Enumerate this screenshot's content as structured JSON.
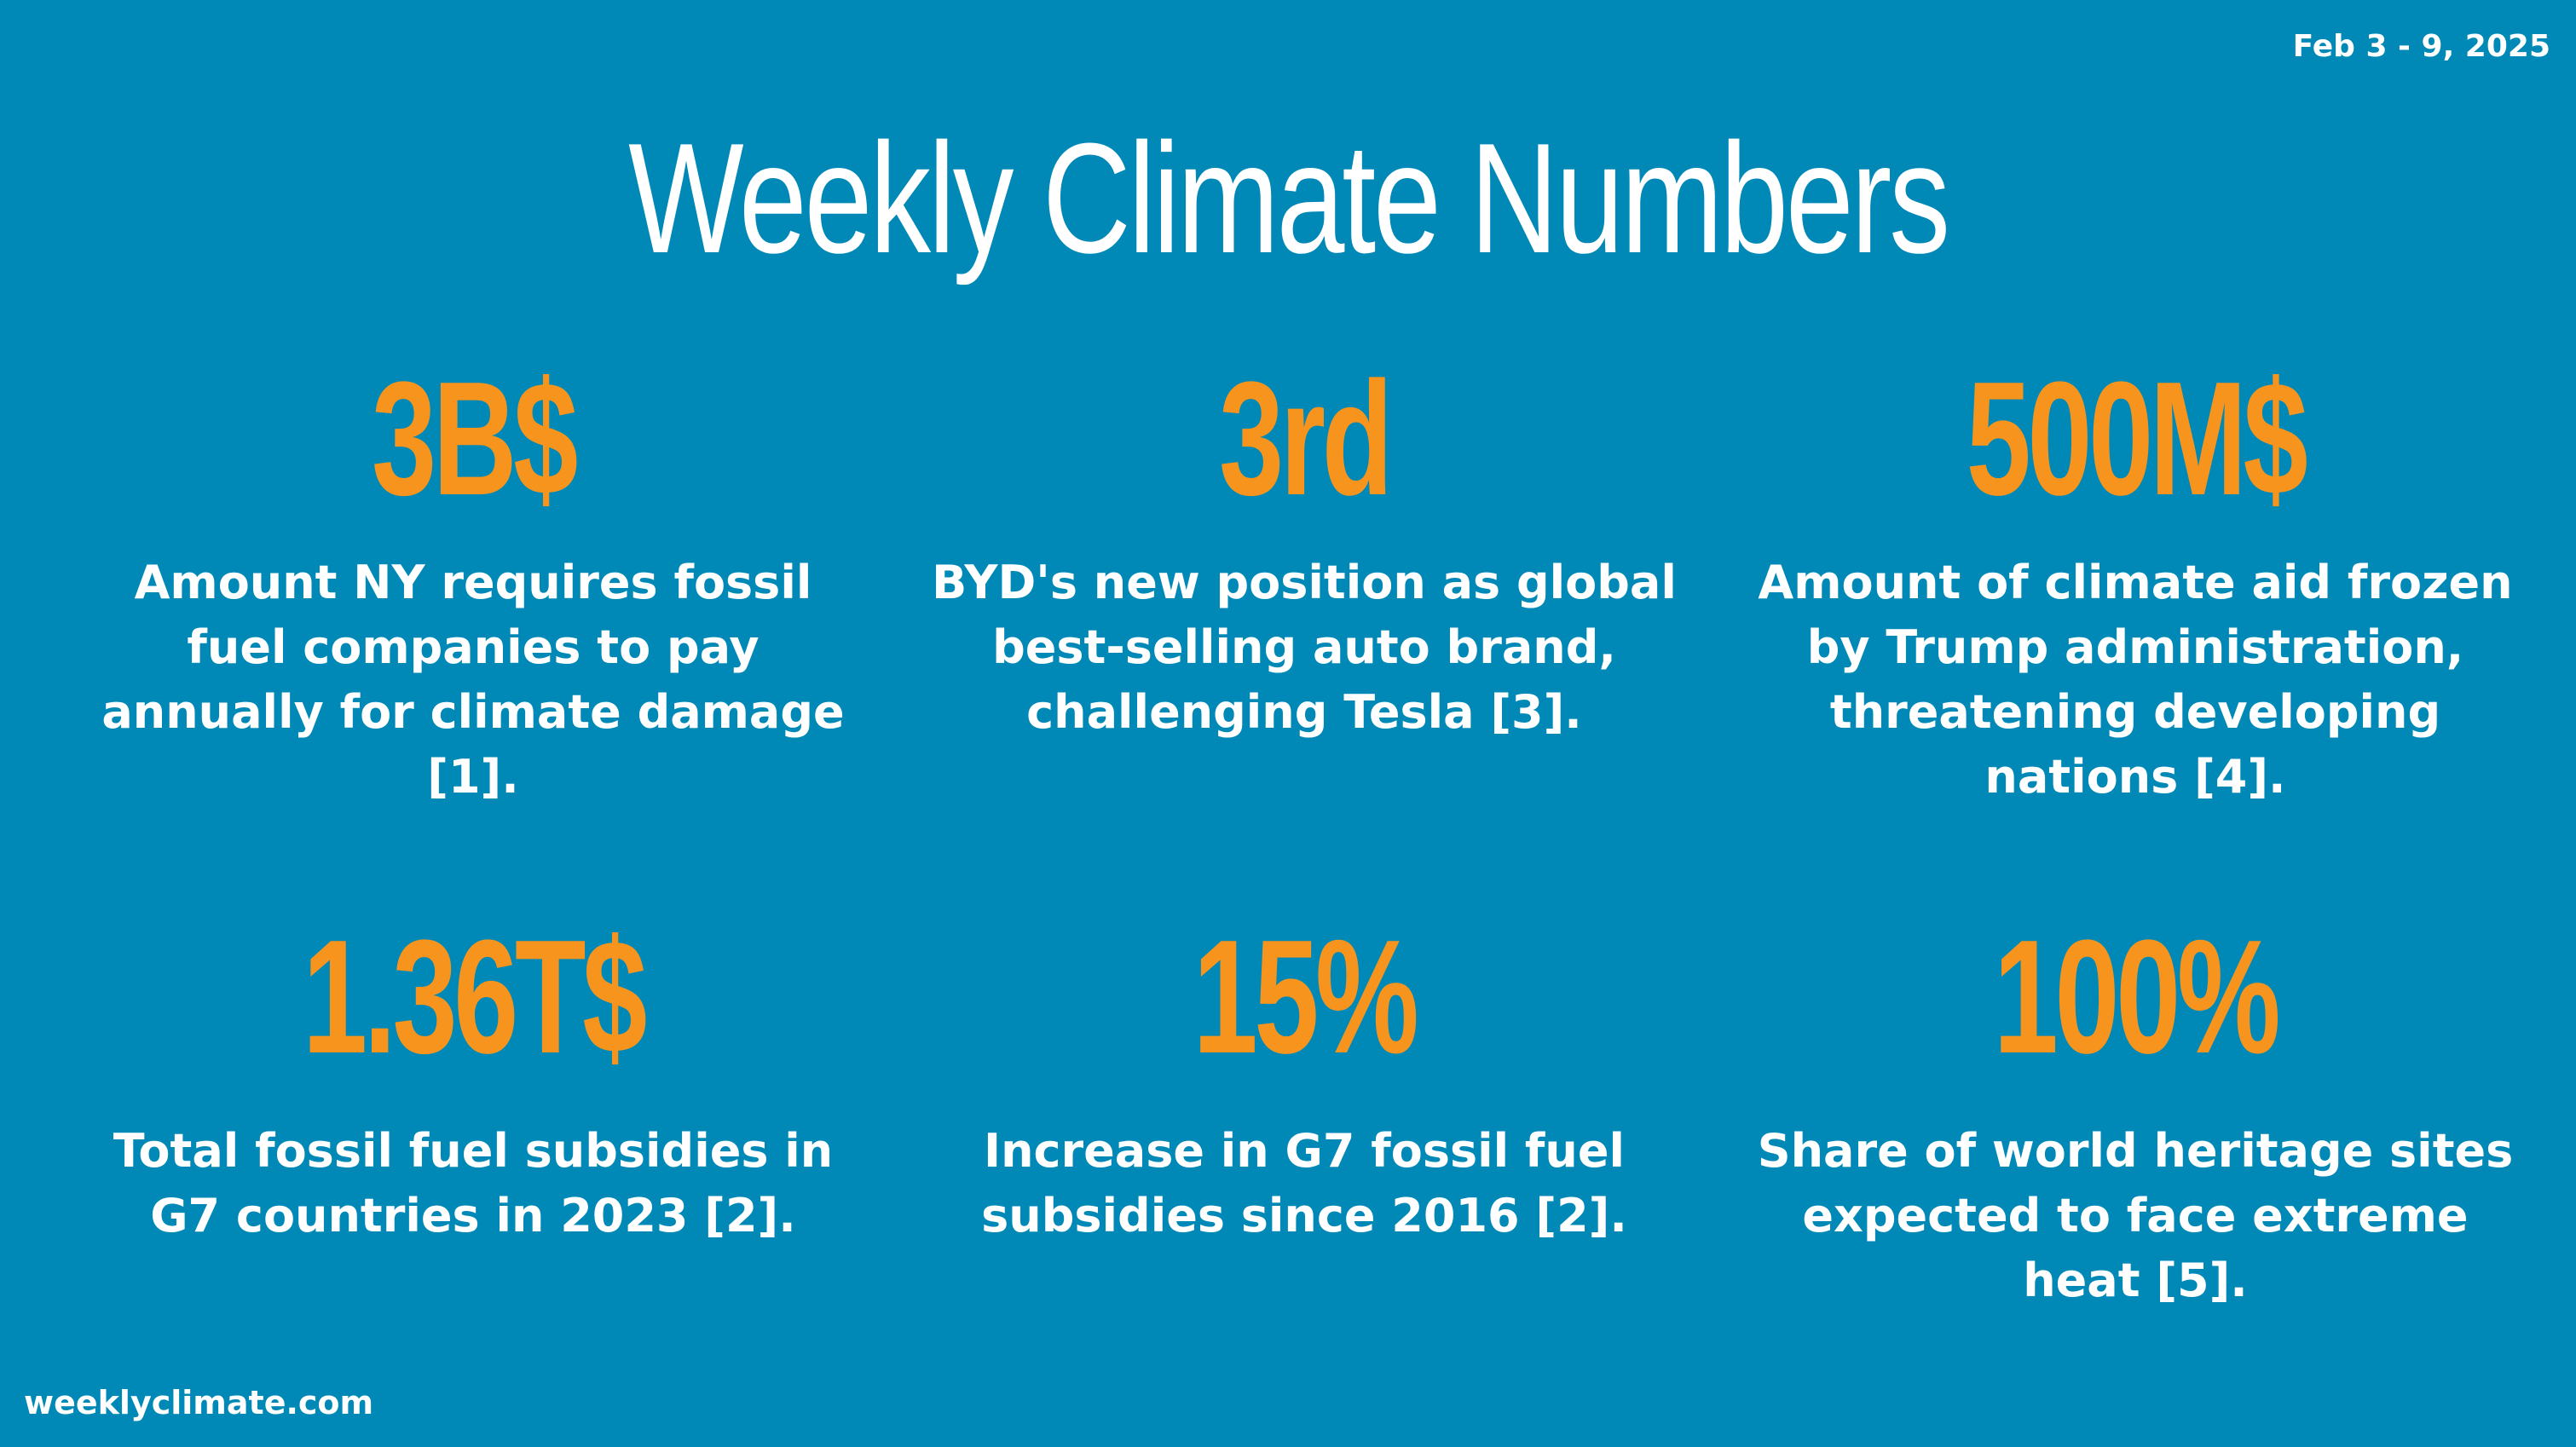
{
  "header": {
    "date_range": "Feb 3 - 9, 2025",
    "title": "Weekly Climate Numbers"
  },
  "colors": {
    "background": "#0089b7",
    "number": "#f7941d",
    "text": "#ffffff"
  },
  "stats": [
    {
      "number": "3B$",
      "description": "Amount NY requires fossil fuel companies to pay annually for climate damage [1]."
    },
    {
      "number": "3rd",
      "description": "BYD's new position as global best-selling auto brand, challenging Tesla [3]."
    },
    {
      "number": "500M$",
      "description": "Amount of climate aid frozen by Trump administration, threatening developing nations [4]."
    },
    {
      "number": "1.36T$",
      "description": "Total fossil fuel subsidies in G7 countries in 2023 [2]."
    },
    {
      "number": "15%",
      "description": "Increase in G7 fossil fuel subsidies since 2016 [2]."
    },
    {
      "number": "100%",
      "description": "Share of world heritage sites expected to face extreme heat [5]."
    }
  ],
  "footer": {
    "site": "weeklyclimate.com"
  }
}
